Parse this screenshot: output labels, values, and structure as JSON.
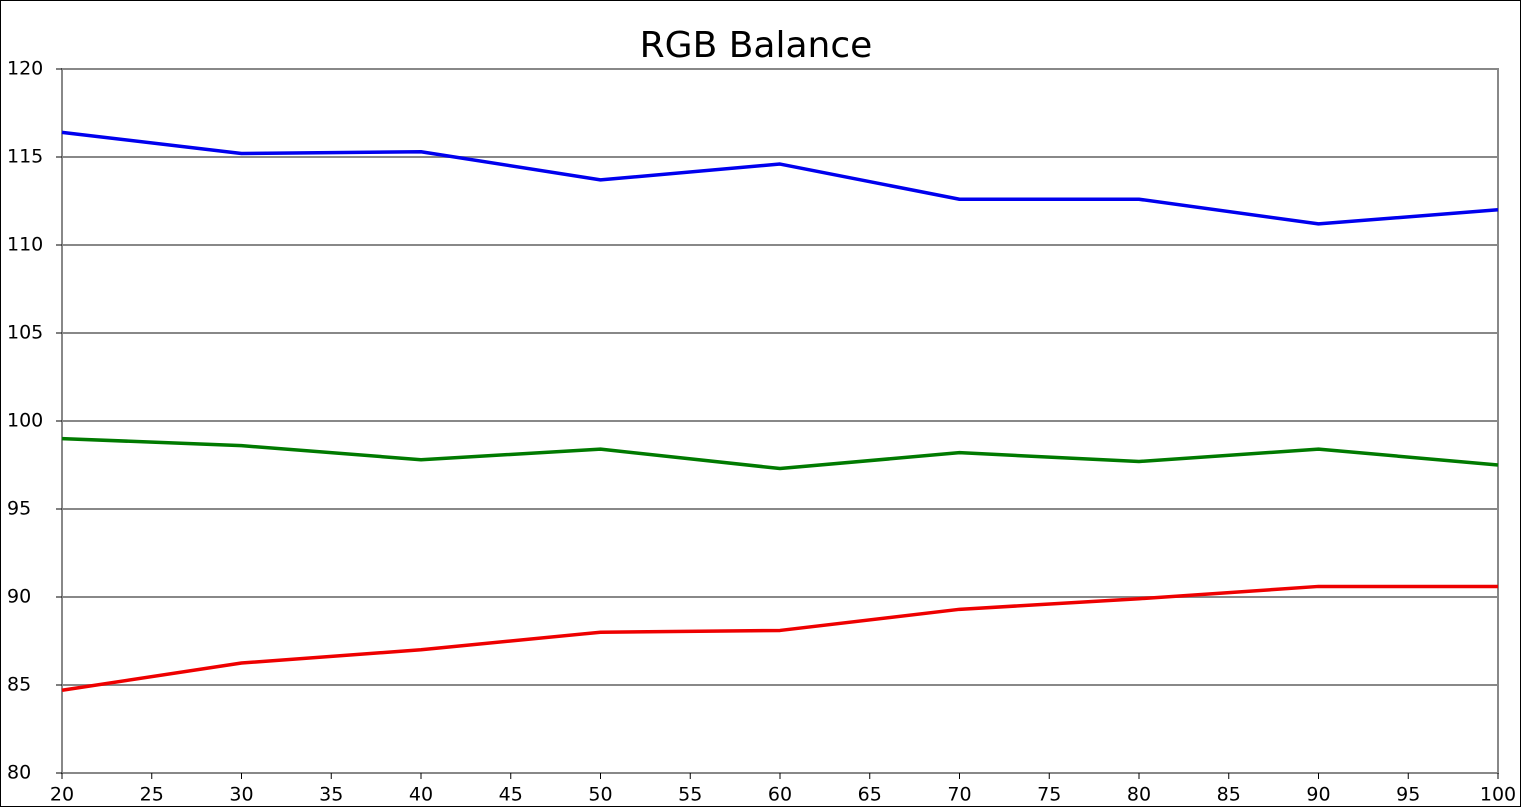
{
  "chart_data": {
    "type": "line",
    "title": "RGB Balance",
    "x": [
      20,
      30,
      40,
      50,
      60,
      70,
      80,
      90,
      100
    ],
    "series": [
      {
        "color": "#0000ee",
        "values": [
          116.4,
          115.2,
          115.3,
          113.7,
          114.6,
          112.6,
          112.6,
          111.2,
          112.0
        ]
      },
      {
        "color": "#007a00",
        "values": [
          99.0,
          98.6,
          97.8,
          98.4,
          97.3,
          98.2,
          97.7,
          98.4,
          97.5
        ]
      },
      {
        "color": "#ee0000",
        "values": [
          84.7,
          86.25,
          87.0,
          88.0,
          88.1,
          89.3,
          89.9,
          90.6,
          90.6
        ]
      }
    ],
    "xlim": [
      20,
      100
    ],
    "xticks": [
      20,
      25,
      30,
      35,
      40,
      45,
      50,
      55,
      60,
      65,
      70,
      75,
      80,
      85,
      90,
      95,
      100
    ],
    "ylim": [
      80,
      120
    ],
    "yticks": [
      80,
      85,
      90,
      95,
      100,
      105,
      110,
      115,
      120
    ],
    "grid": true
  }
}
